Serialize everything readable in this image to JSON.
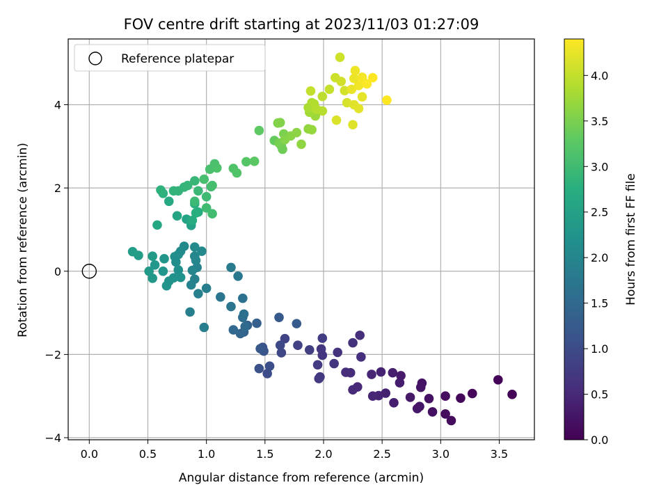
{
  "chart_data": {
    "type": "scatter",
    "title": "FOV centre drift starting at 2023/11/03 01:27:09",
    "xlabel": "Angular distance from reference (arcmin)",
    "ylabel": "Rotation from reference (arcmin)",
    "xlim": [
      -0.18,
      3.8
    ],
    "ylim": [
      -4.05,
      5.58
    ],
    "xticks": [
      "0.0",
      "0.5",
      "1.0",
      "1.5",
      "2.0",
      "2.5",
      "3.0",
      "3.5"
    ],
    "xtick_values": [
      0,
      0.5,
      1.0,
      1.5,
      2.0,
      2.5,
      3.0,
      3.5
    ],
    "yticks": [
      "−4",
      "−2",
      "0",
      "2",
      "4"
    ],
    "ytick_values": [
      -4,
      -2,
      0,
      2,
      4
    ],
    "grid": true,
    "colormap": "viridis",
    "colorbar": {
      "label": "Hours from first FF file",
      "range": [
        0,
        4.4
      ],
      "ticks": [
        "0.0",
        "0.5",
        "1.0",
        "1.5",
        "2.0",
        "2.5",
        "3.0",
        "3.5",
        "4.0"
      ],
      "tick_values": [
        0,
        0.5,
        1.0,
        1.5,
        2.0,
        2.5,
        3.0,
        3.5,
        4.0
      ]
    },
    "legend": {
      "position": "top-left",
      "label": "Reference platepar"
    },
    "reference_point": {
      "x": 0,
      "y": 0
    },
    "points": [
      {
        "x": 3.61,
        "y": -2.96,
        "c": 0.02
      },
      {
        "x": 3.49,
        "y": -2.61,
        "c": 0.05
      },
      {
        "x": 3.27,
        "y": -2.94,
        "c": 0.08
      },
      {
        "x": 3.17,
        "y": -3.05,
        "c": 0.1
      },
      {
        "x": 3.09,
        "y": -3.59,
        "c": 0.12
      },
      {
        "x": 3.04,
        "y": -3.43,
        "c": 0.14
      },
      {
        "x": 3.04,
        "y": -3.0,
        "c": 0.16
      },
      {
        "x": 2.93,
        "y": -3.38,
        "c": 0.18
      },
      {
        "x": 2.9,
        "y": -3.06,
        "c": 0.2
      },
      {
        "x": 2.84,
        "y": -2.69,
        "c": 0.22
      },
      {
        "x": 2.83,
        "y": -2.79,
        "c": 0.24
      },
      {
        "x": 2.82,
        "y": -3.25,
        "c": 0.26
      },
      {
        "x": 2.8,
        "y": -3.3,
        "c": 0.28
      },
      {
        "x": 2.74,
        "y": -3.03,
        "c": 0.3
      },
      {
        "x": 2.66,
        "y": -2.51,
        "c": 0.32
      },
      {
        "x": 2.65,
        "y": -2.68,
        "c": 0.34
      },
      {
        "x": 2.6,
        "y": -3.16,
        "c": 0.36
      },
      {
        "x": 2.59,
        "y": -2.44,
        "c": 0.38
      },
      {
        "x": 2.53,
        "y": -2.93,
        "c": 0.4
      },
      {
        "x": 2.49,
        "y": -2.42,
        "c": 0.42
      },
      {
        "x": 2.47,
        "y": -2.99,
        "c": 0.44
      },
      {
        "x": 2.42,
        "y": -3.0,
        "c": 0.46
      },
      {
        "x": 2.41,
        "y": -2.48,
        "c": 0.48
      },
      {
        "x": 2.29,
        "y": -2.78,
        "c": 0.5
      },
      {
        "x": 2.25,
        "y": -2.85,
        "c": 0.52
      },
      {
        "x": 2.23,
        "y": -2.44,
        "c": 0.54
      },
      {
        "x": 2.19,
        "y": -2.43,
        "c": 0.56
      },
      {
        "x": 2.32,
        "y": -2.06,
        "c": 0.58
      },
      {
        "x": 2.31,
        "y": -1.54,
        "c": 0.6
      },
      {
        "x": 2.25,
        "y": -1.72,
        "c": 0.62
      },
      {
        "x": 2.12,
        "y": -1.95,
        "c": 0.64
      },
      {
        "x": 2.09,
        "y": -2.22,
        "c": 0.66
      },
      {
        "x": 1.99,
        "y": -2.02,
        "c": 0.68
      },
      {
        "x": 1.98,
        "y": -1.87,
        "c": 0.7
      },
      {
        "x": 1.97,
        "y": -2.54,
        "c": 0.72
      },
      {
        "x": 1.96,
        "y": -2.58,
        "c": 0.74
      },
      {
        "x": 1.95,
        "y": -2.25,
        "c": 0.76
      },
      {
        "x": 1.99,
        "y": -1.61,
        "c": 0.78
      },
      {
        "x": 1.88,
        "y": -1.89,
        "c": 0.8
      },
      {
        "x": 1.78,
        "y": -1.78,
        "c": 0.84
      },
      {
        "x": 1.67,
        "y": -1.62,
        "c": 0.88
      },
      {
        "x": 1.64,
        "y": -1.96,
        "c": 0.92
      },
      {
        "x": 1.63,
        "y": -1.78,
        "c": 0.96
      },
      {
        "x": 1.52,
        "y": -2.46,
        "c": 1.0
      },
      {
        "x": 1.54,
        "y": -2.28,
        "c": 1.04
      },
      {
        "x": 1.45,
        "y": -2.34,
        "c": 1.08
      },
      {
        "x": 1.48,
        "y": -1.83,
        "c": 1.12
      },
      {
        "x": 1.49,
        "y": -1.92,
        "c": 1.16
      },
      {
        "x": 1.46,
        "y": -1.86,
        "c": 1.2
      },
      {
        "x": 1.62,
        "y": -1.11,
        "c": 1.24
      },
      {
        "x": 1.77,
        "y": -1.26,
        "c": 1.28
      },
      {
        "x": 1.43,
        "y": -1.25,
        "c": 1.32
      },
      {
        "x": 1.35,
        "y": -1.3,
        "c": 1.36
      },
      {
        "x": 1.32,
        "y": -1.46,
        "c": 1.4
      },
      {
        "x": 1.29,
        "y": -1.5,
        "c": 1.44
      },
      {
        "x": 1.23,
        "y": -1.41,
        "c": 1.48
      },
      {
        "x": 1.33,
        "y": -1.33,
        "c": 1.52
      },
      {
        "x": 1.31,
        "y": -1.11,
        "c": 1.56
      },
      {
        "x": 1.32,
        "y": -1.03,
        "c": 1.6
      },
      {
        "x": 1.31,
        "y": -0.65,
        "c": 1.64
      },
      {
        "x": 1.21,
        "y": -0.85,
        "c": 1.68
      },
      {
        "x": 1.12,
        "y": -0.62,
        "c": 1.72
      },
      {
        "x": 1.27,
        "y": -0.12,
        "c": 1.76
      },
      {
        "x": 1.21,
        "y": 0.09,
        "c": 1.8
      },
      {
        "x": 1.0,
        "y": -0.41,
        "c": 1.84
      },
      {
        "x": 0.98,
        "y": -1.35,
        "c": 1.86
      },
      {
        "x": 0.86,
        "y": -0.98,
        "c": 1.88
      },
      {
        "x": 0.93,
        "y": -0.54,
        "c": 1.9
      },
      {
        "x": 0.9,
        "y": -0.19,
        "c": 1.92
      },
      {
        "x": 0.87,
        "y": -0.33,
        "c": 1.94
      },
      {
        "x": 0.92,
        "y": 0.09,
        "c": 1.96
      },
      {
        "x": 0.88,
        "y": 0.02,
        "c": 1.98
      },
      {
        "x": 0.9,
        "y": 0.36,
        "c": 2.0
      },
      {
        "x": 0.91,
        "y": 0.26,
        "c": 2.02
      },
      {
        "x": 0.96,
        "y": 0.48,
        "c": 2.04
      },
      {
        "x": 0.9,
        "y": 0.58,
        "c": 2.06
      },
      {
        "x": 0.81,
        "y": 0.6,
        "c": 2.08
      },
      {
        "x": 0.78,
        "y": 0.48,
        "c": 2.1
      },
      {
        "x": 0.76,
        "y": 0.4,
        "c": 2.12
      },
      {
        "x": 0.74,
        "y": 0.22,
        "c": 2.14
      },
      {
        "x": 0.73,
        "y": 0.35,
        "c": 2.16
      },
      {
        "x": 0.76,
        "y": 0.03,
        "c": 2.18
      },
      {
        "x": 0.78,
        "y": -0.15,
        "c": 2.2
      },
      {
        "x": 0.72,
        "y": -0.16,
        "c": 2.22
      },
      {
        "x": 0.68,
        "y": -0.24,
        "c": 2.24
      },
      {
        "x": 0.66,
        "y": -0.35,
        "c": 2.26
      },
      {
        "x": 0.64,
        "y": 0.3,
        "c": 2.28
      },
      {
        "x": 0.63,
        "y": 0.0,
        "c": 2.3
      },
      {
        "x": 0.56,
        "y": 0.15,
        "c": 2.32
      },
      {
        "x": 0.54,
        "y": -0.17,
        "c": 2.34
      },
      {
        "x": 0.51,
        "y": 0.0,
        "c": 2.36
      },
      {
        "x": 0.54,
        "y": 0.36,
        "c": 2.38
      },
      {
        "x": 0.42,
        "y": 0.38,
        "c": 2.4
      },
      {
        "x": 0.37,
        "y": 0.47,
        "c": 2.42
      },
      {
        "x": 0.87,
        "y": 1.1,
        "c": 2.5
      },
      {
        "x": 0.83,
        "y": 1.25,
        "c": 2.54
      },
      {
        "x": 0.75,
        "y": 1.33,
        "c": 2.58
      },
      {
        "x": 0.58,
        "y": 1.11,
        "c": 2.62
      },
      {
        "x": 0.68,
        "y": 1.68,
        "c": 2.66
      },
      {
        "x": 0.88,
        "y": 1.22,
        "c": 2.7
      },
      {
        "x": 0.93,
        "y": 1.42,
        "c": 2.74
      },
      {
        "x": 0.91,
        "y": 1.4,
        "c": 2.76
      },
      {
        "x": 0.9,
        "y": 1.62,
        "c": 2.78
      },
      {
        "x": 0.63,
        "y": 1.87,
        "c": 2.8
      },
      {
        "x": 0.61,
        "y": 1.95,
        "c": 2.82
      },
      {
        "x": 0.72,
        "y": 1.93,
        "c": 2.84
      },
      {
        "x": 0.76,
        "y": 1.93,
        "c": 2.86
      },
      {
        "x": 0.81,
        "y": 2.02,
        "c": 2.88
      },
      {
        "x": 0.84,
        "y": 2.06,
        "c": 2.9
      },
      {
        "x": 0.9,
        "y": 2.17,
        "c": 2.92
      },
      {
        "x": 0.93,
        "y": 1.93,
        "c": 2.94
      },
      {
        "x": 0.9,
        "y": 1.68,
        "c": 2.96
      },
      {
        "x": 1.0,
        "y": 1.79,
        "c": 2.98
      },
      {
        "x": 1.0,
        "y": 1.52,
        "c": 3.0
      },
      {
        "x": 1.05,
        "y": 1.38,
        "c": 3.02
      },
      {
        "x": 1.04,
        "y": 2.03,
        "c": 3.04
      },
      {
        "x": 1.05,
        "y": 2.06,
        "c": 3.06
      },
      {
        "x": 0.98,
        "y": 2.21,
        "c": 3.08
      },
      {
        "x": 1.03,
        "y": 2.45,
        "c": 3.1
      },
      {
        "x": 1.07,
        "y": 2.58,
        "c": 3.12
      },
      {
        "x": 1.09,
        "y": 2.48,
        "c": 3.14
      },
      {
        "x": 1.23,
        "y": 2.47,
        "c": 3.16
      },
      {
        "x": 1.26,
        "y": 2.36,
        "c": 3.18
      },
      {
        "x": 1.34,
        "y": 2.63,
        "c": 3.22
      },
      {
        "x": 1.41,
        "y": 2.64,
        "c": 3.26
      },
      {
        "x": 1.45,
        "y": 3.38,
        "c": 3.3
      },
      {
        "x": 1.58,
        "y": 3.14,
        "c": 3.34
      },
      {
        "x": 1.64,
        "y": 3.01,
        "c": 3.38
      },
      {
        "x": 1.65,
        "y": 2.93,
        "c": 3.42
      },
      {
        "x": 1.62,
        "y": 3.08,
        "c": 3.46
      },
      {
        "x": 1.66,
        "y": 3.3,
        "c": 3.5
      },
      {
        "x": 1.61,
        "y": 3.56,
        "c": 3.54
      },
      {
        "x": 1.63,
        "y": 3.57,
        "c": 3.56
      },
      {
        "x": 1.67,
        "y": 3.16,
        "c": 3.58
      },
      {
        "x": 1.72,
        "y": 3.25,
        "c": 3.6
      },
      {
        "x": 1.77,
        "y": 3.33,
        "c": 3.62
      },
      {
        "x": 1.81,
        "y": 3.05,
        "c": 3.64
      },
      {
        "x": 1.87,
        "y": 3.42,
        "c": 3.66
      },
      {
        "x": 1.9,
        "y": 3.4,
        "c": 3.7
      },
      {
        "x": 1.93,
        "y": 3.73,
        "c": 3.74
      },
      {
        "x": 1.88,
        "y": 3.82,
        "c": 3.78
      },
      {
        "x": 1.87,
        "y": 3.93,
        "c": 3.82
      },
      {
        "x": 1.9,
        "y": 4.05,
        "c": 3.86
      },
      {
        "x": 1.92,
        "y": 4.02,
        "c": 3.88
      },
      {
        "x": 1.94,
        "y": 3.89,
        "c": 3.9
      },
      {
        "x": 1.99,
        "y": 3.85,
        "c": 3.92
      },
      {
        "x": 1.99,
        "y": 4.2,
        "c": 3.96
      },
      {
        "x": 1.89,
        "y": 4.33,
        "c": 4.0
      },
      {
        "x": 2.05,
        "y": 4.37,
        "c": 4.02
      },
      {
        "x": 2.1,
        "y": 4.65,
        "c": 4.06
      },
      {
        "x": 2.14,
        "y": 5.14,
        "c": 4.08
      },
      {
        "x": 2.15,
        "y": 4.56,
        "c": 4.1
      },
      {
        "x": 2.18,
        "y": 4.34,
        "c": 4.12
      },
      {
        "x": 2.2,
        "y": 4.05,
        "c": 4.14
      },
      {
        "x": 2.11,
        "y": 3.63,
        "c": 4.16
      },
      {
        "x": 2.25,
        "y": 3.52,
        "c": 4.18
      },
      {
        "x": 2.26,
        "y": 4.0,
        "c": 4.2
      },
      {
        "x": 2.3,
        "y": 3.91,
        "c": 4.22
      },
      {
        "x": 2.33,
        "y": 4.19,
        "c": 4.24
      },
      {
        "x": 2.24,
        "y": 4.37,
        "c": 4.26
      },
      {
        "x": 2.26,
        "y": 4.63,
        "c": 4.28
      },
      {
        "x": 2.27,
        "y": 4.82,
        "c": 4.3
      },
      {
        "x": 2.3,
        "y": 4.46,
        "c": 4.32
      },
      {
        "x": 2.33,
        "y": 4.66,
        "c": 4.34
      },
      {
        "x": 2.34,
        "y": 4.55,
        "c": 4.36
      },
      {
        "x": 2.37,
        "y": 4.5,
        "c": 4.38
      },
      {
        "x": 2.42,
        "y": 4.65,
        "c": 4.4
      },
      {
        "x": 2.54,
        "y": 4.11,
        "c": 4.4
      }
    ]
  }
}
